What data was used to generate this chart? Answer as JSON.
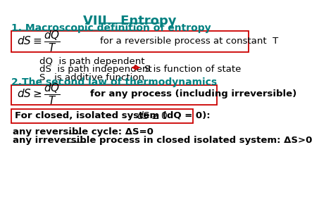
{
  "title": "VIII.  Entropy",
  "title_color": "#008080",
  "title_fontsize": 13,
  "bg_color": "#ffffff",
  "section1_label": "1. Macroscopic definition of entropy",
  "section1_color": "#008080",
  "section2_label": "2.The second law of thermodynamics",
  "section2_color": "#008080",
  "box1_text": "for a reversible process at constant  T",
  "box1_border": "#cc0000",
  "bullet_line1": "dQ  is path dependent",
  "bullet_line2": "dS  is path independent",
  "bullet_line3": "S   is additive function",
  "bullet_ds_suffix": "S is function of state",
  "arrow_color": "#cc0000",
  "box2_text": "for any process (including irreversible)",
  "box2_border": "#cc0000",
  "box3_text_left": "For closed, isolated system (dQ = 0):",
  "box3_border": "#cc0000",
  "bottom1": "any reversible cycle: ΔS=0",
  "bottom2": "any irreversible process in closed isolated system: ΔS>0",
  "text_color": "#000000"
}
